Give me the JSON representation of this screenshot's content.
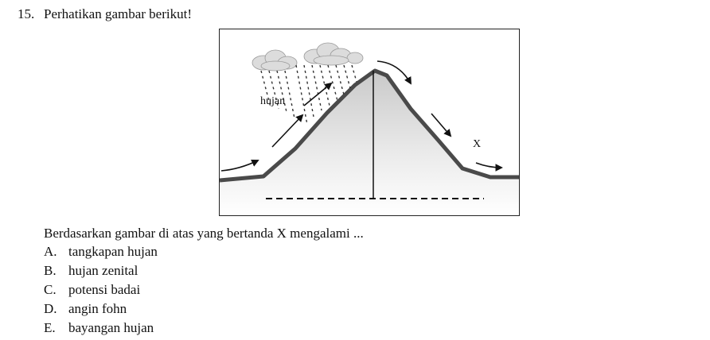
{
  "question": {
    "number": "15.",
    "instruction": "Perhatikan gambar berikut!",
    "prompt": "Berdasarkan gambar di atas yang bertanda X mengalami ...",
    "options": [
      {
        "letter": "A.",
        "text": "tangkapan hujan"
      },
      {
        "letter": "B.",
        "text": "hujan zenital"
      },
      {
        "letter": "C.",
        "text": "potensi badai"
      },
      {
        "letter": "D.",
        "text": "angin fohn"
      },
      {
        "letter": "E.",
        "text": "bayangan hujan"
      }
    ]
  },
  "figure": {
    "rain_label": "hujan",
    "marker_label": "X"
  }
}
